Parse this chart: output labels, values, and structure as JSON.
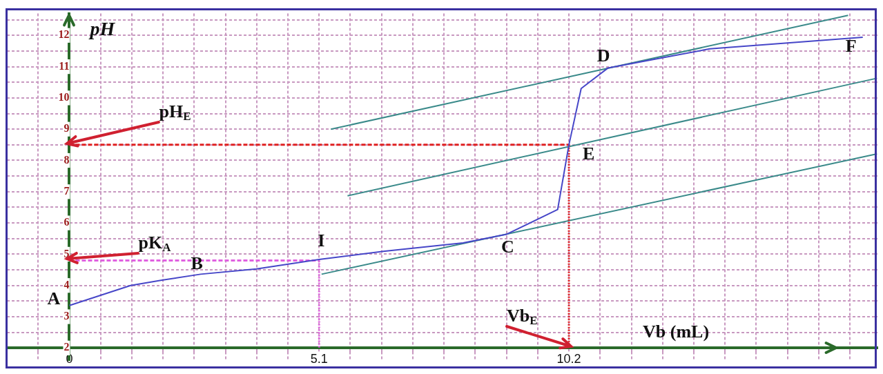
{
  "chart_data": {
    "type": "line",
    "xlabel": "Vb (mL)",
    "ylabel": "pH",
    "xlim": [
      -1.275,
      16.5
    ],
    "ylim": [
      1.6,
      12.7
    ],
    "xticks": [
      {
        "value": -1.275,
        "label": null
      },
      {
        "value": -0.6375,
        "label": null
      },
      0,
      {
        "value": 0.6375,
        "label": null
      },
      {
        "value": 1.275,
        "label": null
      },
      {
        "value": 1.9125,
        "label": null
      },
      {
        "value": 2.55,
        "label": null
      },
      {
        "value": 3.1875,
        "label": null
      },
      {
        "value": 3.825,
        "label": null
      },
      {
        "value": 4.4625,
        "label": null
      },
      5.1,
      {
        "value": 5.7375,
        "label": null
      },
      {
        "value": 6.375,
        "label": null
      },
      {
        "value": 7.0125,
        "label": null
      },
      {
        "value": 7.65,
        "label": null
      },
      {
        "value": 8.2875,
        "label": null
      },
      {
        "value": 8.925,
        "label": null
      },
      {
        "value": 9.5625,
        "label": null
      },
      10.2,
      {
        "value": 10.8375,
        "label": null
      },
      {
        "value": 11.475,
        "label": null
      },
      {
        "value": 12.1125,
        "label": null
      },
      {
        "value": 12.75,
        "label": null
      },
      {
        "value": 13.3875,
        "label": null
      },
      {
        "value": 14.025,
        "label": null
      },
      {
        "value": 14.6625,
        "label": null
      },
      {
        "value": 15.3,
        "label": null
      },
      {
        "value": 15.9375,
        "label": null
      }
    ],
    "yticks": [
      2,
      {
        "value": 2.5,
        "label": null
      },
      3,
      {
        "value": 3.5,
        "label": null
      },
      4,
      {
        "value": 4.5,
        "label": null
      },
      5,
      {
        "value": 5.5,
        "label": null
      },
      6,
      {
        "value": 6.5,
        "label": null
      },
      7,
      {
        "value": 7.5,
        "label": null
      },
      8,
      {
        "value": 8.5,
        "label": null
      },
      9,
      {
        "value": 9.5,
        "label": null
      },
      10,
      {
        "value": 10.5,
        "label": null
      },
      11,
      {
        "value": 11.5,
        "label": null
      },
      12,
      {
        "value": 12.5,
        "label": null
      }
    ],
    "grid": true,
    "legend": false,
    "marker": "none",
    "series": [
      {
        "color": "#4646c8",
        "line_style": "solid",
        "x": [
          0,
          1.25,
          1.89,
          2.68,
          3.82,
          5.1,
          6.41,
          8.04,
          8.93,
          9.97,
          10.2,
          10.45,
          11.0,
          13.08,
          16.2
        ],
        "values": [
          3.36,
          4.0,
          4.17,
          4.36,
          4.53,
          4.83,
          5.09,
          5.36,
          5.64,
          6.43,
          8.5,
          10.3,
          10.96,
          11.57,
          11.94
        ]
      },
      {
        "color": "#e02020",
        "line_style": "dashed",
        "x": [
          0,
          10.2
        ],
        "values": [
          8.5,
          8.5
        ]
      },
      {
        "color": "#e02020",
        "line_style": "dotted",
        "x": [
          10.2,
          10.2
        ],
        "values": [
          8.5,
          2
        ]
      },
      {
        "color": "#e060e0",
        "line_style": "dashed",
        "x": [
          0,
          5.1
        ],
        "values": [
          4.8,
          4.8
        ]
      },
      {
        "color": "#e060e0",
        "line_style": "dotted",
        "x": [
          5.1,
          5.1
        ],
        "values": [
          4.8,
          2
        ]
      },
      {
        "color": "#3a8a8a",
        "line_style": "solid",
        "x": [
          5.34,
          15.9
        ],
        "values": [
          9.0,
          12.64
        ]
      },
      {
        "color": "#3a8a8a",
        "line_style": "solid",
        "x": [
          5.68,
          16.49
        ],
        "values": [
          6.87,
          10.63
        ]
      },
      {
        "color": "#3a8a8a",
        "line_style": "solid",
        "x": [
          5.15,
          16.49
        ],
        "values": [
          4.36,
          8.21
        ]
      }
    ],
    "annotations": [
      {
        "text": "A",
        "x": 0,
        "y": 3.36
      },
      {
        "text": "B",
        "x": 2.68,
        "y": 4.36
      },
      {
        "text": "I",
        "x": 5.1,
        "y": 4.83
      },
      {
        "text": "C",
        "x": 8.93,
        "y": 5.64
      },
      {
        "text": "E",
        "x": 10.2,
        "y": 8.5
      },
      {
        "text": "D",
        "x": 11.0,
        "y": 10.96
      },
      {
        "text": "F",
        "x": 16.2,
        "y": 11.94
      },
      {
        "text": "pH$_{E}$",
        "x": 0,
        "y": 8.5
      },
      {
        "text": "pK$_{A}$",
        "x": 0,
        "y": 4.8
      },
      {
        "text": "Vb$_{E}$",
        "x": 10.2,
        "y": 2
      }
    ]
  }
}
